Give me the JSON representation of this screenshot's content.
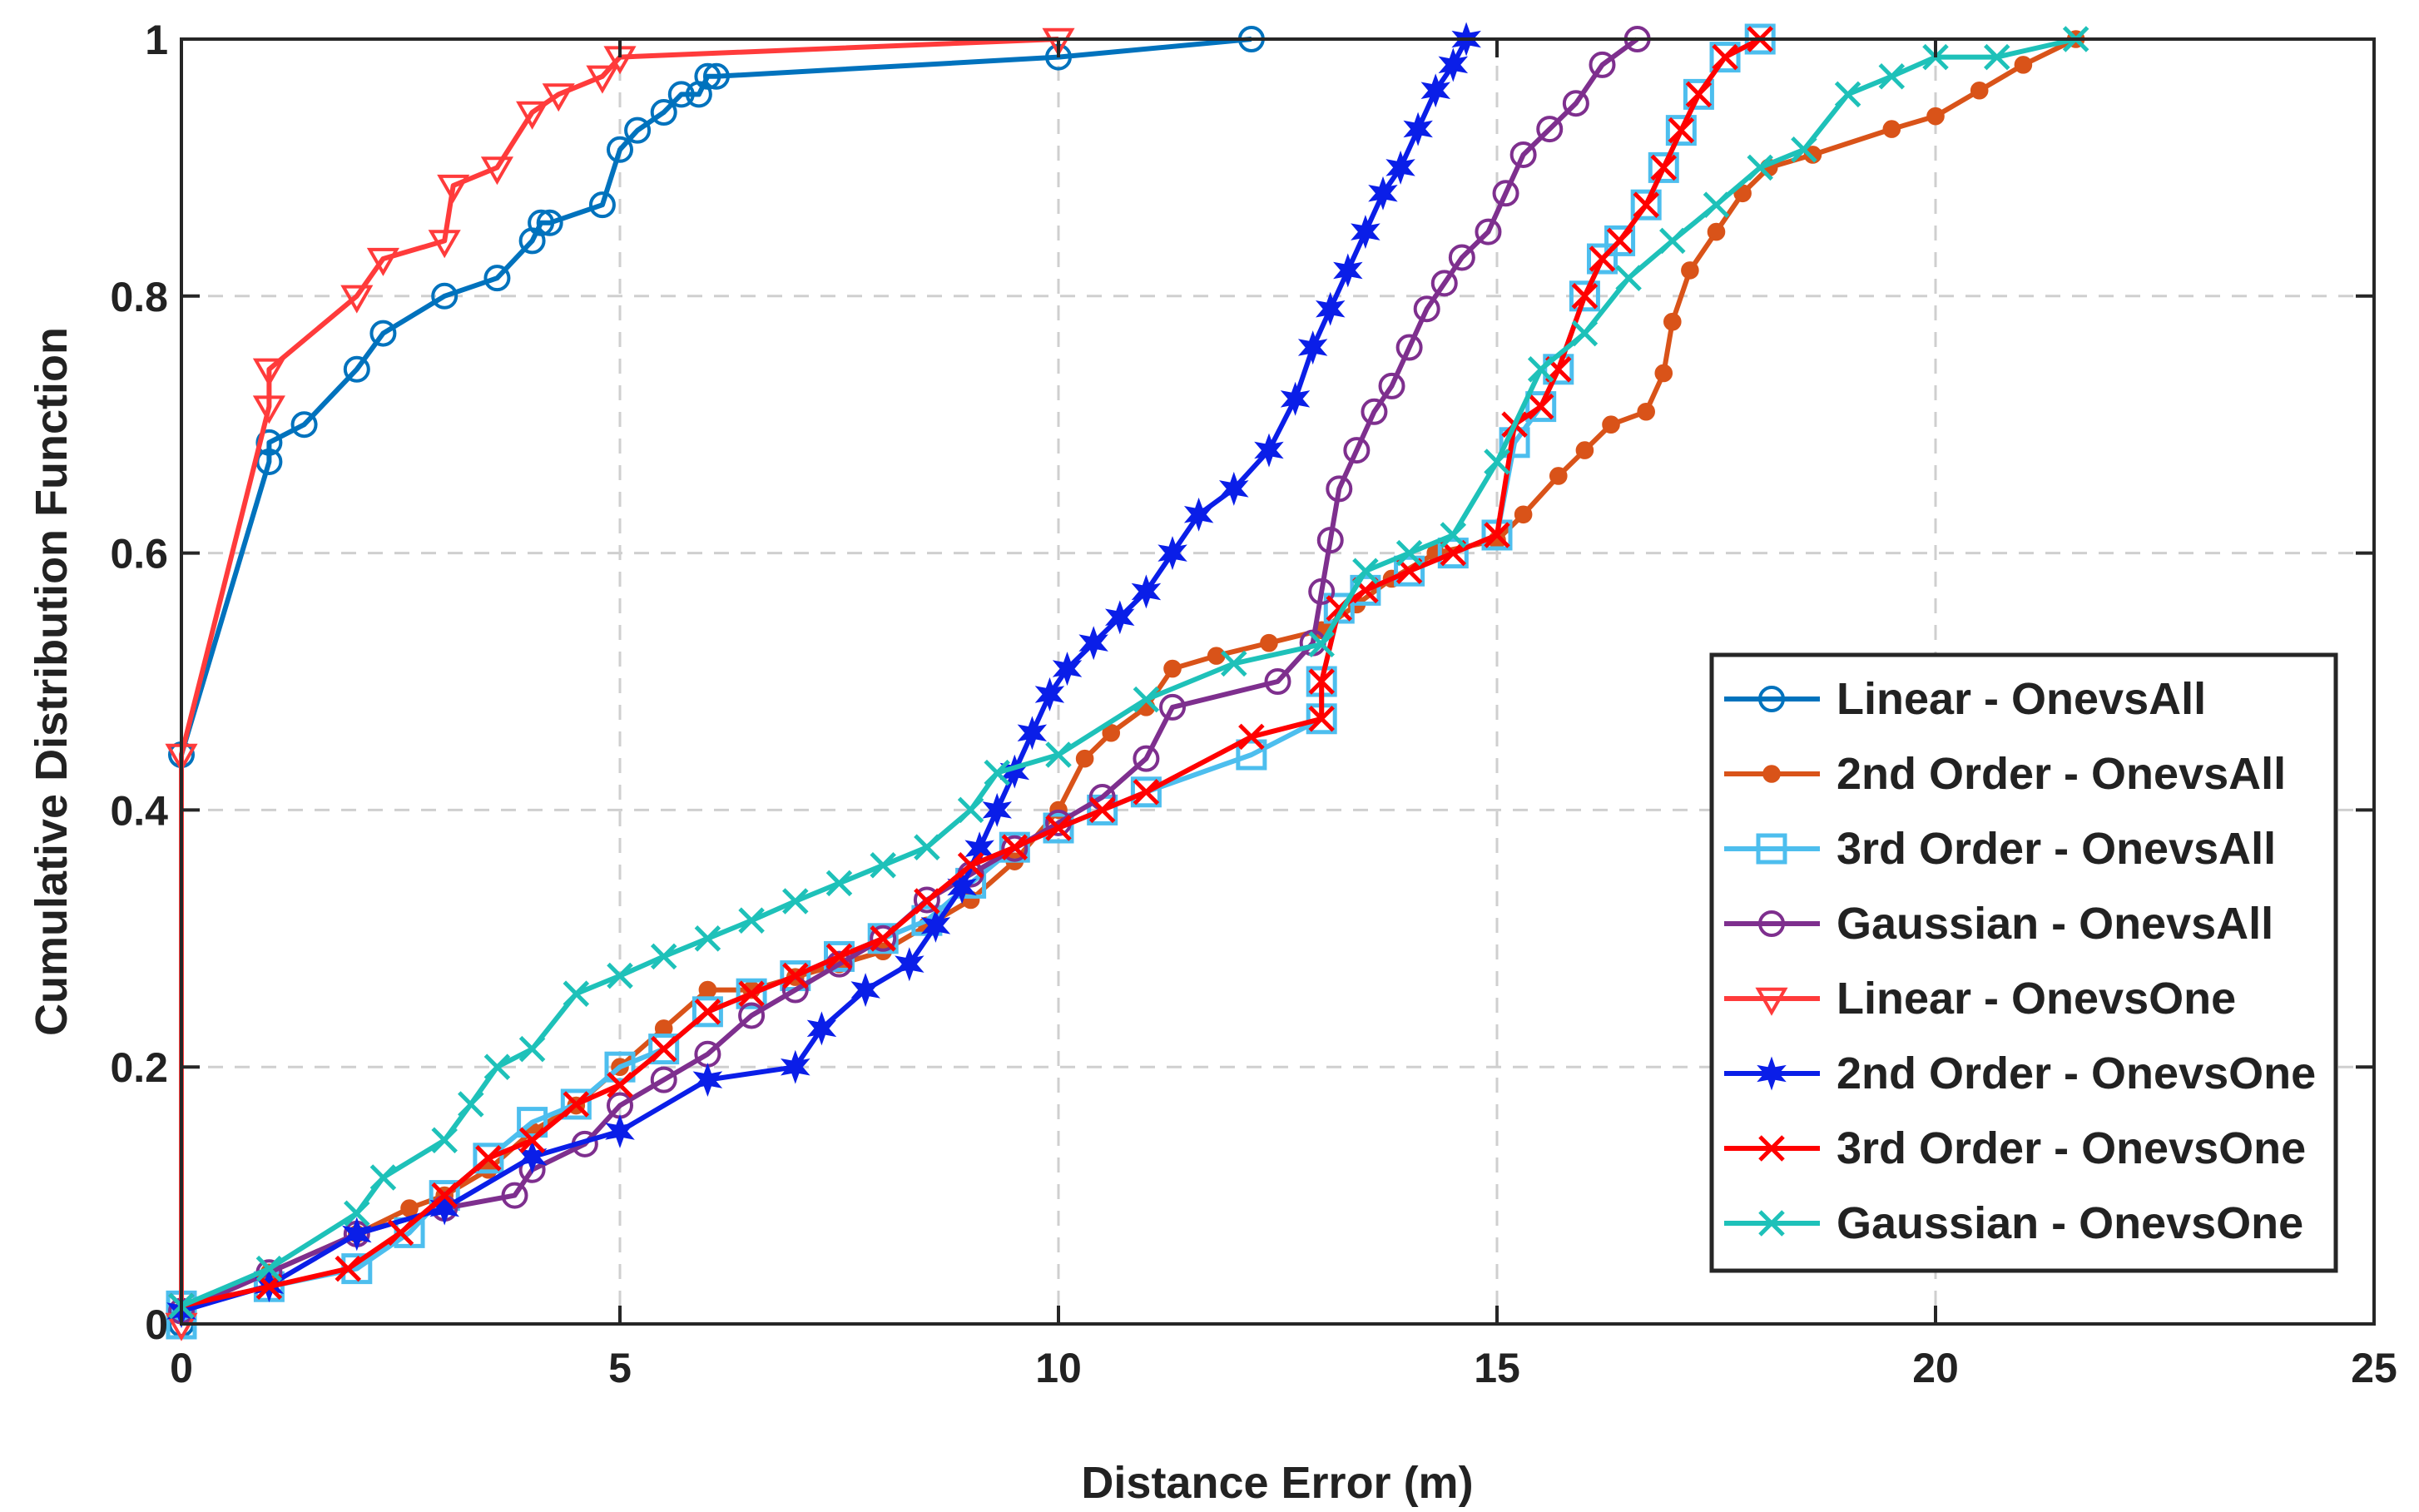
{
  "chart_data": {
    "type": "line",
    "title": "",
    "xlabel": "Distance Error (m)",
    "ylabel": "Cumulative Distribution Function",
    "xlim": [
      0,
      25
    ],
    "ylim": [
      0,
      1
    ],
    "xticks": [
      0,
      5,
      10,
      15,
      20,
      25
    ],
    "yticks": [
      0,
      0.2,
      0.4,
      0.6,
      0.8,
      1
    ],
    "xtick_labels": [
      "0",
      "5",
      "10",
      "15",
      "20",
      "25"
    ],
    "ytick_labels": [
      "0",
      "0.2",
      "0.4",
      "0.6",
      "0.8",
      "1"
    ],
    "grid": true,
    "legend_position": "bottom-right",
    "series": [
      {
        "name": "Linear - OnevsAll",
        "color": "#0072bd",
        "marker": "circle",
        "x": [
          0,
          0,
          1,
          1,
          1.4,
          2,
          2.3,
          3,
          3.6,
          4,
          4.1,
          4.2,
          4.8,
          5,
          5.2,
          5.5,
          5.7,
          5.9,
          6,
          6.1,
          10,
          12.2
        ],
        "y": [
          0,
          0.443,
          0.671,
          0.686,
          0.7,
          0.743,
          0.771,
          0.8,
          0.814,
          0.843,
          0.857,
          0.857,
          0.871,
          0.914,
          0.929,
          0.943,
          0.957,
          0.957,
          0.971,
          0.971,
          0.986,
          1
        ]
      },
      {
        "name": "2nd Order - OnevsAll",
        "color": "#d95319",
        "marker": "dot",
        "x": [
          0,
          1,
          2,
          2.6,
          3,
          3.5,
          4,
          4.5,
          5,
          5.5,
          6,
          6.5,
          7,
          7.5,
          8,
          8.5,
          9,
          9.5,
          10,
          10.3,
          10.6,
          11,
          11.3,
          11.8,
          12.4,
          13,
          13.4,
          13.8,
          14.3,
          15,
          15.3,
          15.7,
          16,
          16.3,
          16.7,
          16.9,
          17,
          17.2,
          17.5,
          17.8,
          18.1,
          18.6,
          19.5,
          20,
          20.5,
          21,
          21.6
        ],
        "y": [
          0.01,
          0.04,
          0.07,
          0.09,
          0.1,
          0.12,
          0.15,
          0.17,
          0.2,
          0.23,
          0.26,
          0.26,
          0.27,
          0.28,
          0.29,
          0.31,
          0.33,
          0.36,
          0.4,
          0.44,
          0.46,
          0.48,
          0.51,
          0.52,
          0.53,
          0.54,
          0.56,
          0.58,
          0.6,
          0.61,
          0.63,
          0.66,
          0.68,
          0.7,
          0.71,
          0.74,
          0.78,
          0.82,
          0.85,
          0.88,
          0.9,
          0.91,
          0.93,
          0.94,
          0.96,
          0.98,
          1
        ]
      },
      {
        "name": "3rd Order - OnevsAll",
        "color": "#4dbeee",
        "marker": "square",
        "x": [
          0,
          0,
          1,
          2,
          2.6,
          3,
          3.5,
          4,
          4.5,
          5,
          5.5,
          6,
          6.5,
          7,
          7.5,
          8,
          8.5,
          9,
          9.5,
          10,
          10.5,
          11,
          12.2,
          13,
          13,
          13.2,
          13.5,
          14,
          14.5,
          15,
          15.2,
          15.5,
          15.7,
          16,
          16.2,
          16.4,
          16.7,
          16.9,
          17.1,
          17.3,
          17.6,
          18
        ],
        "y": [
          0,
          0.014,
          0.029,
          0.043,
          0.071,
          0.1,
          0.129,
          0.157,
          0.171,
          0.2,
          0.214,
          0.243,
          0.257,
          0.271,
          0.286,
          0.3,
          0.314,
          0.343,
          0.371,
          0.386,
          0.4,
          0.414,
          0.443,
          0.471,
          0.5,
          0.557,
          0.571,
          0.586,
          0.6,
          0.614,
          0.686,
          0.714,
          0.743,
          0.8,
          0.829,
          0.843,
          0.871,
          0.9,
          0.929,
          0.957,
          0.986,
          1
        ]
      },
      {
        "name": "Gaussian - OnevsAll",
        "color": "#7e2f8e",
        "marker": "circle",
        "x": [
          0,
          1,
          2,
          3,
          3.8,
          4,
          4.6,
          5,
          5.5,
          6,
          6.5,
          7,
          7.5,
          8,
          8.5,
          9,
          9.5,
          10,
          10.5,
          11,
          11.3,
          12.5,
          12.9,
          13,
          13.1,
          13.2,
          13.4,
          13.6,
          13.8,
          14,
          14.2,
          14.4,
          14.6,
          14.9,
          15.1,
          15.3,
          15.6,
          15.9,
          16.2,
          16.6
        ],
        "y": [
          0.01,
          0.04,
          0.07,
          0.09,
          0.1,
          0.12,
          0.14,
          0.17,
          0.19,
          0.21,
          0.24,
          0.26,
          0.28,
          0.3,
          0.33,
          0.35,
          0.37,
          0.39,
          0.41,
          0.44,
          0.48,
          0.5,
          0.53,
          0.57,
          0.61,
          0.65,
          0.68,
          0.71,
          0.73,
          0.76,
          0.79,
          0.81,
          0.83,
          0.85,
          0.88,
          0.91,
          0.93,
          0.95,
          0.98,
          1
        ]
      },
      {
        "name": "Linear - OnevsOne",
        "color": "#ff3b3b",
        "marker": "triangle-down",
        "x": [
          0,
          0,
          1,
          1,
          2,
          2.3,
          3,
          3.1,
          3.6,
          4,
          4.3,
          4.8,
          5,
          10
        ],
        "y": [
          0,
          0.443,
          0.714,
          0.743,
          0.8,
          0.829,
          0.843,
          0.886,
          0.9,
          0.943,
          0.957,
          0.971,
          0.986,
          1
        ]
      },
      {
        "name": "2nd Order - OnevsOne",
        "color": "#0a1ee8",
        "marker": "star",
        "x": [
          0,
          1,
          2,
          3,
          4,
          5,
          6,
          7,
          7.3,
          7.8,
          8.3,
          8.6,
          8.9,
          9.1,
          9.3,
          9.5,
          9.7,
          9.9,
          10.1,
          10.4,
          10.7,
          11,
          11.3,
          11.6,
          12,
          12.4,
          12.7,
          12.9,
          13.1,
          13.3,
          13.5,
          13.7,
          13.9,
          14.1,
          14.3,
          14.5,
          14.65
        ],
        "y": [
          0.01,
          0.03,
          0.07,
          0.09,
          0.13,
          0.15,
          0.19,
          0.2,
          0.23,
          0.26,
          0.28,
          0.31,
          0.34,
          0.37,
          0.4,
          0.43,
          0.46,
          0.49,
          0.51,
          0.53,
          0.55,
          0.57,
          0.6,
          0.63,
          0.65,
          0.68,
          0.72,
          0.76,
          0.79,
          0.82,
          0.85,
          0.88,
          0.9,
          0.93,
          0.96,
          0.98,
          1
        ]
      },
      {
        "name": "3rd Order - OnevsOne",
        "color": "#ff0000",
        "marker": "x",
        "x": [
          0,
          1,
          1.9,
          2.5,
          3,
          3.5,
          4,
          4.5,
          5,
          5.5,
          6,
          6.5,
          7,
          7.5,
          8,
          8.5,
          9,
          9.5,
          10,
          10.5,
          11,
          12.2,
          13,
          13,
          13.2,
          13.5,
          14,
          14.5,
          15,
          15.2,
          15.5,
          15.7,
          16,
          16.2,
          16.4,
          16.7,
          16.9,
          17.1,
          17.3,
          17.6,
          18
        ],
        "y": [
          0.014,
          0.029,
          0.043,
          0.071,
          0.1,
          0.129,
          0.143,
          0.171,
          0.186,
          0.214,
          0.243,
          0.257,
          0.271,
          0.286,
          0.3,
          0.329,
          0.357,
          0.371,
          0.386,
          0.4,
          0.414,
          0.457,
          0.471,
          0.5,
          0.557,
          0.571,
          0.586,
          0.6,
          0.614,
          0.7,
          0.714,
          0.743,
          0.8,
          0.829,
          0.843,
          0.871,
          0.9,
          0.929,
          0.957,
          0.986,
          1
        ]
      },
      {
        "name": "Gaussian - OnevsOne",
        "color": "#1ec1b9",
        "marker": "x",
        "x": [
          0,
          1,
          2,
          2.3,
          3,
          3.3,
          3.6,
          4,
          4.5,
          5,
          5.5,
          6,
          6.5,
          7,
          7.5,
          8,
          8.5,
          9,
          9.3,
          10,
          11,
          12,
          13,
          13.5,
          14,
          14.5,
          15,
          15.5,
          16,
          16.5,
          17,
          17.5,
          18,
          18.5,
          19,
          19.5,
          20,
          20.7,
          21.6
        ],
        "y": [
          0.014,
          0.043,
          0.086,
          0.114,
          0.143,
          0.171,
          0.2,
          0.214,
          0.257,
          0.271,
          0.286,
          0.3,
          0.314,
          0.329,
          0.343,
          0.357,
          0.371,
          0.4,
          0.429,
          0.443,
          0.486,
          0.514,
          0.529,
          0.586,
          0.6,
          0.614,
          0.671,
          0.743,
          0.771,
          0.814,
          0.843,
          0.871,
          0.9,
          0.914,
          0.957,
          0.971,
          0.986,
          0.986,
          1
        ]
      }
    ]
  }
}
